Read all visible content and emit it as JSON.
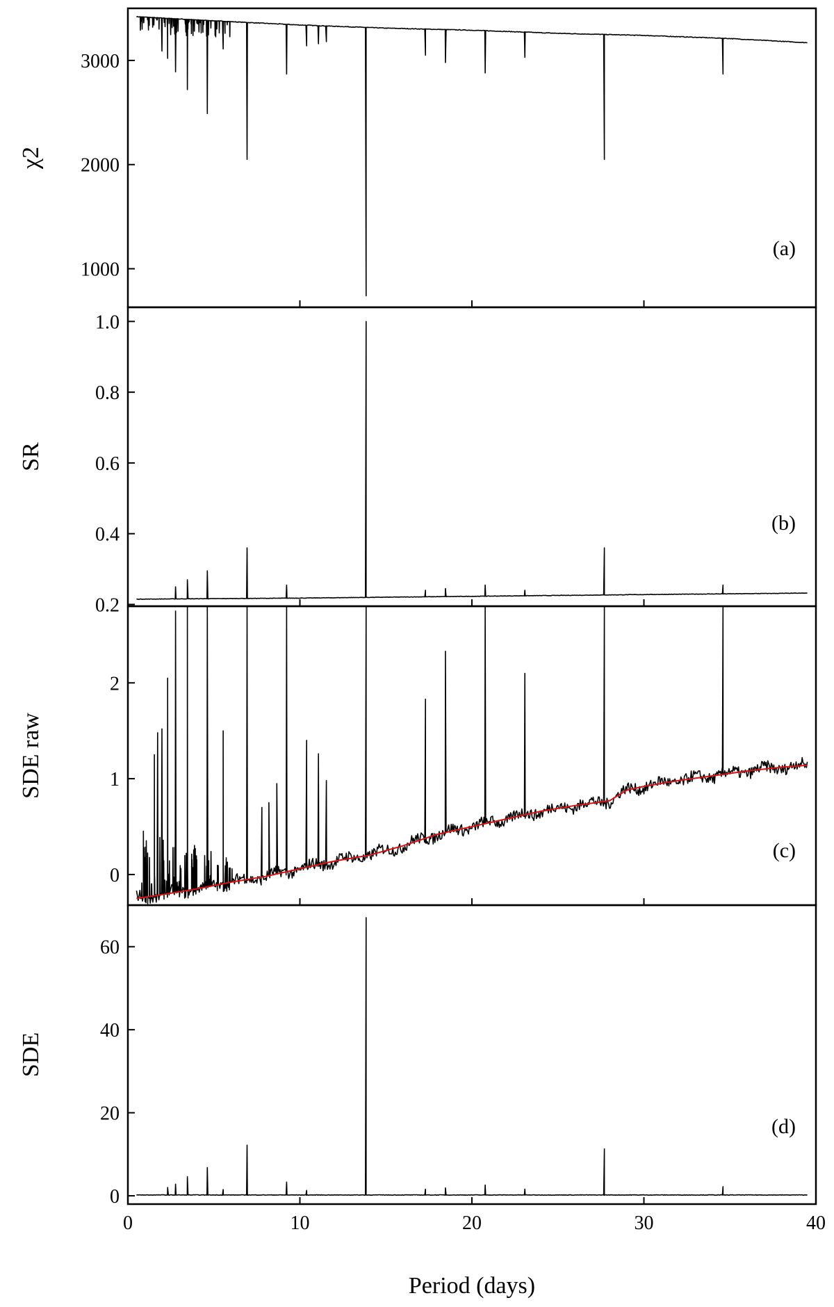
{
  "chart_data": [
    {
      "type": "line",
      "panel_label": "(a)",
      "ylabel": "χ2",
      "xlim": [
        0,
        40
      ],
      "ylim": [
        630,
        3500
      ],
      "yticks": [
        1000,
        2000,
        3000
      ],
      "baseline": {
        "x": [
          0.5,
          5,
          10,
          15,
          20,
          25,
          30,
          35,
          39.5
        ],
        "y": [
          3420,
          3380,
          3340,
          3310,
          3290,
          3260,
          3240,
          3210,
          3170
        ]
      },
      "dips": [
        {
          "x": 13.85,
          "y": 740
        },
        {
          "x": 6.93,
          "y": 2050
        },
        {
          "x": 27.7,
          "y": 2050
        },
        {
          "x": 4.62,
          "y": 2490
        },
        {
          "x": 3.46,
          "y": 2720
        },
        {
          "x": 2.77,
          "y": 2890
        },
        {
          "x": 9.23,
          "y": 2870
        },
        {
          "x": 20.77,
          "y": 2880
        },
        {
          "x": 34.6,
          "y": 2870
        },
        {
          "x": 18.46,
          "y": 2980
        },
        {
          "x": 17.3,
          "y": 3050
        },
        {
          "x": 23.08,
          "y": 3030
        },
        {
          "x": 2.31,
          "y": 3020
        },
        {
          "x": 1.98,
          "y": 3090
        },
        {
          "x": 5.54,
          "y": 3110
        },
        {
          "x": 10.39,
          "y": 3140
        },
        {
          "x": 11.08,
          "y": 3160
        },
        {
          "x": 11.54,
          "y": 3180
        }
      ]
    },
    {
      "type": "line",
      "panel_label": "(b)",
      "ylabel": "SR",
      "xlim": [
        0,
        40
      ],
      "ylim": [
        0.195,
        1.04
      ],
      "yticks": [
        0.2,
        0.4,
        0.6,
        0.8,
        1.0
      ],
      "baseline": {
        "x": [
          0.5,
          10,
          20,
          30,
          39.5
        ],
        "y": [
          0.215,
          0.218,
          0.223,
          0.228,
          0.232
        ]
      },
      "peaks": [
        {
          "x": 13.85,
          "y": 1.0
        },
        {
          "x": 6.93,
          "y": 0.36
        },
        {
          "x": 27.7,
          "y": 0.36
        },
        {
          "x": 4.62,
          "y": 0.295
        },
        {
          "x": 3.46,
          "y": 0.27
        },
        {
          "x": 9.23,
          "y": 0.255
        },
        {
          "x": 20.77,
          "y": 0.255
        },
        {
          "x": 34.6,
          "y": 0.255
        },
        {
          "x": 2.77,
          "y": 0.25
        },
        {
          "x": 18.46,
          "y": 0.245
        },
        {
          "x": 17.3,
          "y": 0.24
        },
        {
          "x": 23.08,
          "y": 0.24
        }
      ]
    },
    {
      "type": "line",
      "panel_label": "(c)",
      "ylabel": "SDE raw",
      "xlim": [
        0,
        40
      ],
      "ylim": [
        -0.32,
        2.8
      ],
      "yticks": [
        0,
        1,
        2
      ],
      "trend": {
        "x": [
          0.5,
          2,
          4,
          6,
          8,
          10,
          12,
          14,
          16,
          18,
          20,
          22,
          24,
          26,
          28,
          29,
          30,
          32,
          34,
          36,
          38,
          39.5
        ],
        "y": [
          -0.25,
          -0.21,
          -0.15,
          -0.08,
          -0.02,
          0.06,
          0.14,
          0.2,
          0.3,
          0.42,
          0.5,
          0.58,
          0.66,
          0.72,
          0.77,
          0.88,
          0.92,
          0.98,
          1.03,
          1.08,
          1.12,
          1.14
        ]
      },
      "peaks": [
        {
          "x": 2.77,
          "y": 2.75
        },
        {
          "x": 3.46,
          "y": 2.8
        },
        {
          "x": 4.62,
          "y": 2.8
        },
        {
          "x": 6.93,
          "y": 2.8
        },
        {
          "x": 9.23,
          "y": 2.8
        },
        {
          "x": 13.85,
          "y": 2.8
        },
        {
          "x": 20.77,
          "y": 2.8
        },
        {
          "x": 27.7,
          "y": 2.8
        },
        {
          "x": 34.6,
          "y": 2.8
        },
        {
          "x": 2.31,
          "y": 2.05
        },
        {
          "x": 1.98,
          "y": 1.52
        },
        {
          "x": 1.73,
          "y": 1.48
        },
        {
          "x": 1.54,
          "y": 1.25
        },
        {
          "x": 5.54,
          "y": 1.5
        },
        {
          "x": 18.46,
          "y": 2.33
        },
        {
          "x": 23.08,
          "y": 2.1
        },
        {
          "x": 17.3,
          "y": 1.83
        },
        {
          "x": 10.39,
          "y": 1.4
        },
        {
          "x": 11.08,
          "y": 1.26
        },
        {
          "x": 11.54,
          "y": 0.98
        },
        {
          "x": 8.66,
          "y": 0.95
        },
        {
          "x": 8.2,
          "y": 0.75
        },
        {
          "x": 7.79,
          "y": 0.7
        }
      ]
    },
    {
      "type": "line",
      "panel_label": "(d)",
      "ylabel": "SDE",
      "xlabel": "Period (days)",
      "xlim": [
        0,
        40
      ],
      "xticks": [
        0,
        10,
        20,
        30,
        40
      ],
      "ylim": [
        -2,
        70
      ],
      "yticks": [
        0,
        20,
        40,
        60
      ],
      "baseline": {
        "x": [
          0.5,
          39.5
        ],
        "y": [
          0.2,
          0.2
        ]
      },
      "peaks": [
        {
          "x": 13.85,
          "y": 67
        },
        {
          "x": 6.93,
          "y": 12.2
        },
        {
          "x": 27.7,
          "y": 11.3
        },
        {
          "x": 4.62,
          "y": 6.8
        },
        {
          "x": 3.46,
          "y": 4.6
        },
        {
          "x": 9.23,
          "y": 3.3
        },
        {
          "x": 20.77,
          "y": 2.6
        },
        {
          "x": 2.77,
          "y": 2.8
        },
        {
          "x": 34.6,
          "y": 2.2
        },
        {
          "x": 18.46,
          "y": 1.9
        },
        {
          "x": 17.3,
          "y": 1.6
        },
        {
          "x": 23.08,
          "y": 1.6
        },
        {
          "x": 2.31,
          "y": 2.0
        },
        {
          "x": 10.39,
          "y": 1.3
        },
        {
          "x": 5.54,
          "y": 1.5
        }
      ]
    }
  ]
}
